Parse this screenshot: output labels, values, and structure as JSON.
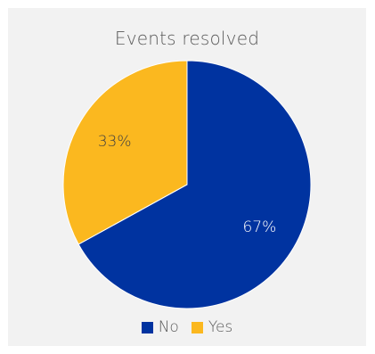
{
  "chart_data": {
    "type": "pie",
    "title": "Events resolved",
    "categories": [
      "No",
      "Yes"
    ],
    "values": [
      67,
      33
    ],
    "data_labels": [
      "67%",
      "33%"
    ],
    "colors": [
      "#0033a0",
      "#fbb81f"
    ],
    "label_colors": [
      "#ffffff",
      "#404040"
    ],
    "start_angle_deg": 0,
    "direction": "clockwise",
    "legend": "bottom",
    "background": "#f2f2f2"
  }
}
